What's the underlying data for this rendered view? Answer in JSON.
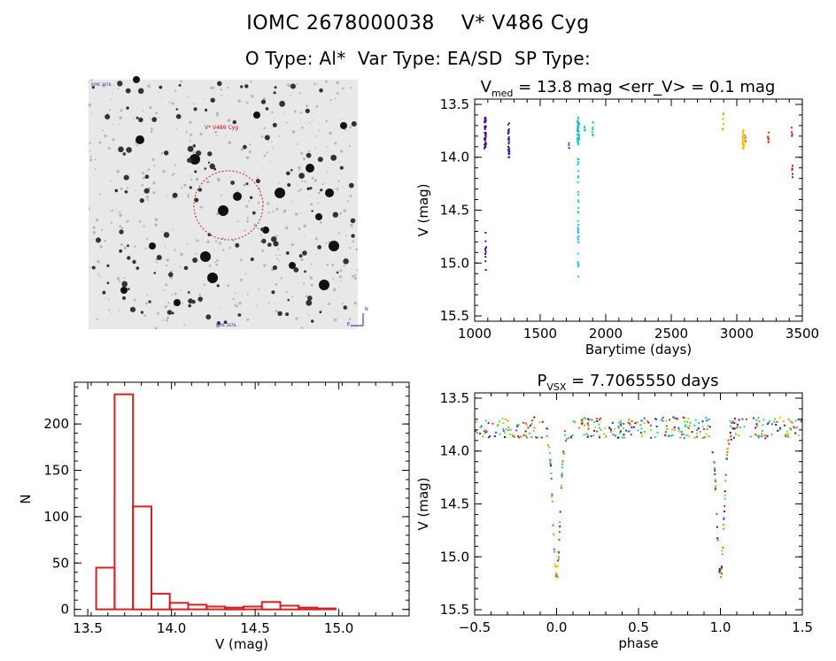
{
  "header": {
    "title": "IOMC 2678000038    V* V486 Cyg",
    "subtitle": "O Type: Al*  Var Type: EA/SD  SP Type:"
  },
  "colors": {
    "histogram": "#d42020",
    "finder_circle": "#d42020",
    "finder_label": "#c01010",
    "finder_meta": "#1a1aa8"
  },
  "finder_image": {
    "target_label": "V* V486 Cyg",
    "corner_labels": [
      "IOMC 2678...",
      "N",
      "E",
      "IOMC 2678..."
    ]
  },
  "chart_data": [
    {
      "type": "scatter",
      "id": "lightcurve",
      "title_prefix": "V",
      "title_subscript": "med",
      "title_suffix": " = 13.8 mag <err_V> = 0.1 mag",
      "xlabel": "Barytime (days)",
      "ylabel": "V (mag)",
      "xlim": [
        1000,
        3500
      ],
      "ylim": [
        15.55,
        13.45
      ],
      "xticks": [
        1000,
        1500,
        2000,
        2500,
        3000,
        3500
      ],
      "yticks": [
        13.5,
        14.0,
        14.5,
        15.0,
        15.5
      ],
      "ytick_labels": [
        "13.5",
        "14.0",
        "14.5",
        "15.0",
        "15.5"
      ],
      "clusters": [
        {
          "x": 1080,
          "width": 12,
          "ymin": 13.62,
          "ymax": 13.92,
          "n": 40,
          "color": "#4a0a8a"
        },
        {
          "x": 1085,
          "width": 8,
          "ymin": 14.62,
          "ymax": 15.12,
          "n": 10,
          "color": "#4a0a8a"
        },
        {
          "x": 1260,
          "width": 10,
          "ymin": 13.66,
          "ymax": 14.02,
          "n": 35,
          "color": "#3030b0"
        },
        {
          "x": 1720,
          "width": 6,
          "ymin": 13.86,
          "ymax": 13.92,
          "n": 4,
          "color": "#3060d0"
        },
        {
          "x": 1790,
          "width": 14,
          "ymin": 13.62,
          "ymax": 13.88,
          "n": 40,
          "color": "#20c8c8"
        },
        {
          "x": 1790,
          "width": 6,
          "ymin": 13.9,
          "ymax": 15.18,
          "n": 35,
          "color": "#20c8d8"
        },
        {
          "x": 1840,
          "width": 6,
          "ymin": 13.7,
          "ymax": 13.78,
          "n": 5,
          "color": "#30d0a0"
        },
        {
          "x": 1900,
          "width": 8,
          "ymin": 13.66,
          "ymax": 13.82,
          "n": 8,
          "color": "#40d060"
        },
        {
          "x": 2895,
          "width": 8,
          "ymin": 13.58,
          "ymax": 13.76,
          "n": 8,
          "color": "#a0d020"
        },
        {
          "x": 3050,
          "width": 12,
          "ymin": 13.74,
          "ymax": 13.92,
          "n": 20,
          "color": "#f0c000"
        },
        {
          "x": 3065,
          "width": 6,
          "ymin": 13.74,
          "ymax": 13.86,
          "n": 6,
          "color": "#f08000"
        },
        {
          "x": 3240,
          "width": 6,
          "ymin": 13.74,
          "ymax": 13.86,
          "n": 10,
          "color": "#e04010"
        },
        {
          "x": 3420,
          "width": 6,
          "ymin": 13.72,
          "ymax": 13.8,
          "n": 4,
          "color": "#d02020"
        },
        {
          "x": 3425,
          "width": 6,
          "ymin": 14.08,
          "ymax": 14.2,
          "n": 6,
          "color": "#c01010"
        }
      ]
    },
    {
      "type": "bar",
      "id": "histogram",
      "xlabel": "V (mag)",
      "ylabel": "N",
      "xlim": [
        13.42,
        15.42
      ],
      "ylim": [
        -7,
        245
      ],
      "xticks": [
        13.5,
        14.0,
        14.5,
        15.0
      ],
      "xtick_labels": [
        "13.5",
        "14.0",
        "14.5",
        "15.0"
      ],
      "yticks": [
        0,
        50,
        100,
        150,
        200
      ],
      "bin_start": 13.55,
      "bin_width": 0.11,
      "counts": [
        45,
        232,
        111,
        17,
        7,
        5,
        3,
        2,
        3,
        8,
        4,
        2,
        1
      ]
    },
    {
      "type": "scatter",
      "id": "phased",
      "title_prefix": "P",
      "title_subscript": "VSX",
      "title_suffix": " = 7.7065550 days",
      "xlabel": "phase",
      "ylabel": "V (mag)",
      "xlim": [
        -0.5,
        1.5
      ],
      "ylim": [
        15.55,
        13.45
      ],
      "xticks": [
        -0.5,
        0.0,
        0.5,
        1.0,
        1.5
      ],
      "xtick_labels": [
        "−0.5",
        "0.0",
        "0.5",
        "1.0",
        "1.5"
      ],
      "yticks": [
        13.5,
        14.0,
        14.5,
        15.0,
        15.5
      ],
      "ytick_labels": [
        "13.5",
        "14.0",
        "14.5",
        "15.0",
        "15.5"
      ],
      "eclipse_phase": 0.0,
      "eclipse_depth": 15.17,
      "baseline": 13.78,
      "colors": [
        "#4a0a8a",
        "#3030b0",
        "#3060d0",
        "#20c8c8",
        "#30d0a0",
        "#40d060",
        "#a0d020",
        "#f0c000",
        "#f08000",
        "#e04010"
      ]
    }
  ]
}
